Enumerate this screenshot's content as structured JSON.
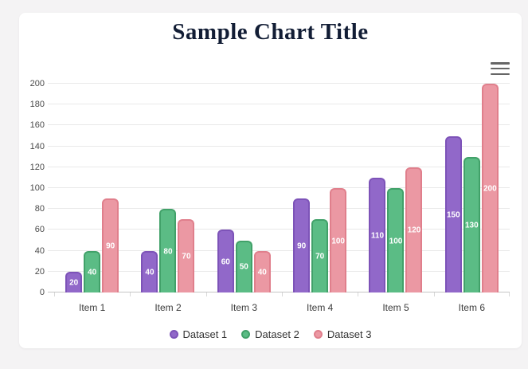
{
  "chart_data": {
    "type": "bar",
    "title": "Sample Chart Title",
    "categories": [
      "Item 1",
      "Item 2",
      "Item 3",
      "Item 4",
      "Item 5",
      "Item 6"
    ],
    "series": [
      {
        "name": "Dataset 1",
        "values": [
          20,
          40,
          60,
          90,
          110,
          150
        ],
        "fill": "#9168c9",
        "border": "#7d53b8"
      },
      {
        "name": "Dataset 2",
        "values": [
          40,
          80,
          50,
          70,
          100,
          130
        ],
        "fill": "#5bbc85",
        "border": "#41a169"
      },
      {
        "name": "Dataset 3",
        "values": [
          90,
          70,
          40,
          100,
          120,
          200
        ],
        "fill": "#eb98a3",
        "border": "#e07f8c"
      }
    ],
    "ylim": [
      0,
      200
    ],
    "ytick_step": 20,
    "ytick_labels": [
      "0",
      "20",
      "40",
      "60",
      "80",
      "100",
      "120",
      "140",
      "160",
      "180",
      "200"
    ],
    "grid": true,
    "legend_position": "bottom",
    "value_labels_shown": true
  },
  "ui": {
    "menu_icon": "hamburger-menu-icon",
    "colors": {
      "page_bg": "#f4f3f4",
      "card_bg": "#ffffff",
      "title_text": "#121d35",
      "axis_text": "#4a4a4a",
      "gridline": "#e9e9e9",
      "axis_line": "#c6c6c6",
      "legend_text": "#333333",
      "menu_icon": "#666666",
      "value_label": "#ffffff"
    }
  }
}
